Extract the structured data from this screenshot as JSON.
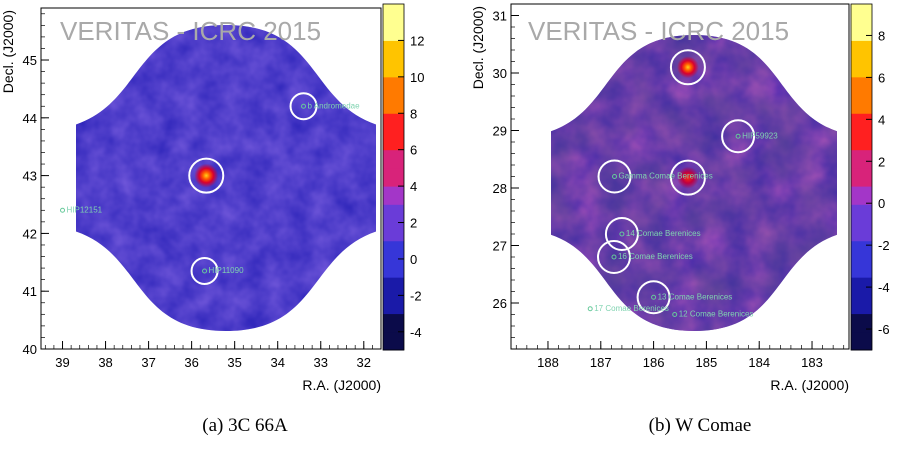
{
  "panels": [
    {
      "caption": "(a) 3C 66A",
      "watermark": "VERITAS - ICRC 2015",
      "chart_data": {
        "type": "heatmap",
        "xlabel": "R.A. (J2000)",
        "ylabel": "Decl. (J2000)",
        "xlim": [
          39.5,
          31.6
        ],
        "ylim": [
          40.0,
          45.9
        ],
        "x_ticks": [
          "39",
          "38",
          "37",
          "36",
          "35",
          "34",
          "33",
          "32"
        ],
        "x_tick_values": [
          39,
          38,
          37,
          36,
          35,
          34,
          33,
          32
        ],
        "y_ticks": [
          "40",
          "41",
          "42",
          "43",
          "44",
          "45"
        ],
        "y_tick_values": [
          40,
          41,
          42,
          43,
          44,
          45
        ],
        "colorbar_ticks": [
          "-4",
          "-2",
          "0",
          "2",
          "4",
          "6",
          "8",
          "10",
          "12"
        ],
        "colorbar_values": [
          -4,
          -2,
          0,
          2,
          4,
          6,
          8,
          10,
          12
        ],
        "colorbar_range": [
          -5,
          14
        ],
        "sources": [
          {
            "label": "b Andromedae",
            "ra": 33.4,
            "dec": 44.2,
            "circle": true
          },
          {
            "label": "HIP12151",
            "ra": 39.0,
            "dec": 42.4,
            "circle": false
          },
          {
            "label": "HIP11090",
            "ra": 35.7,
            "dec": 41.35,
            "circle": true
          }
        ],
        "hotspot": {
          "ra": 35.66,
          "dec": 43.0,
          "circle": true
        }
      }
    },
    {
      "caption": "(b) W Comae",
      "watermark": "VERITAS - ICRC 2015",
      "chart_data": {
        "type": "heatmap",
        "xlabel": "R.A. (J2000)",
        "ylabel": "Decl. (J2000)",
        "xlim": [
          188.7,
          182.3
        ],
        "ylim": [
          25.2,
          31.2
        ],
        "x_ticks": [
          "188",
          "187",
          "186",
          "185",
          "184",
          "183"
        ],
        "x_tick_values": [
          188,
          187,
          186,
          185,
          184,
          183
        ],
        "y_ticks": [
          "26",
          "27",
          "28",
          "29",
          "30",
          "31"
        ],
        "y_tick_values": [
          26,
          27,
          28,
          29,
          30,
          31
        ],
        "colorbar_ticks": [
          "-6",
          "-4",
          "-2",
          "0",
          "2",
          "4",
          "6",
          "8"
        ],
        "colorbar_values": [
          -6,
          -4,
          -2,
          0,
          2,
          4,
          6,
          8
        ],
        "colorbar_range": [
          -7,
          9.5
        ],
        "sources": [
          {
            "label": "HIP59923",
            "ra": 184.4,
            "dec": 28.9,
            "circle": true
          },
          {
            "label": "Gamma Comae Berenices",
            "ra": 186.74,
            "dec": 28.2,
            "circle": true
          },
          {
            "label": "14 Comae Berenices",
            "ra": 186.6,
            "dec": 27.2,
            "circle": true
          },
          {
            "label": "16 Comae Berenices",
            "ra": 186.75,
            "dec": 26.8,
            "circle": true
          },
          {
            "label": "13 Comae Berenices",
            "ra": 186.0,
            "dec": 26.1,
            "circle": true
          },
          {
            "label": "17 Comae Berenices",
            "ra": 187.2,
            "dec": 25.9,
            "circle": false
          },
          {
            "label": "12 Comae Berenices",
            "ra": 185.6,
            "dec": 25.8,
            "circle": false
          }
        ],
        "hotspots": [
          {
            "ra": 185.35,
            "dec": 30.1,
            "circle": true
          },
          {
            "ra": 185.35,
            "dec": 28.18,
            "circle": true
          }
        ]
      }
    }
  ]
}
